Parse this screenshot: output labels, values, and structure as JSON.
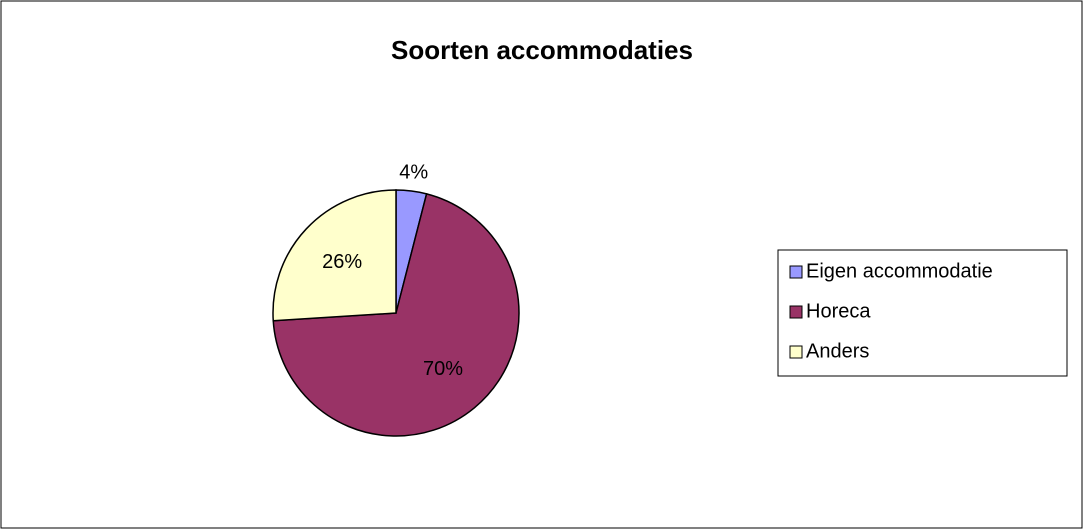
{
  "chart_data": {
    "type": "pie",
    "title": "Soorten accommodaties",
    "categories": [
      "Eigen accommodatie",
      "Horeca",
      "Anders"
    ],
    "values": [
      4,
      70,
      26
    ],
    "value_labels": [
      "4%",
      "70%",
      "26%"
    ],
    "colors": [
      "#9999ff",
      "#993366",
      "#ffffcc"
    ],
    "legend": "right"
  }
}
